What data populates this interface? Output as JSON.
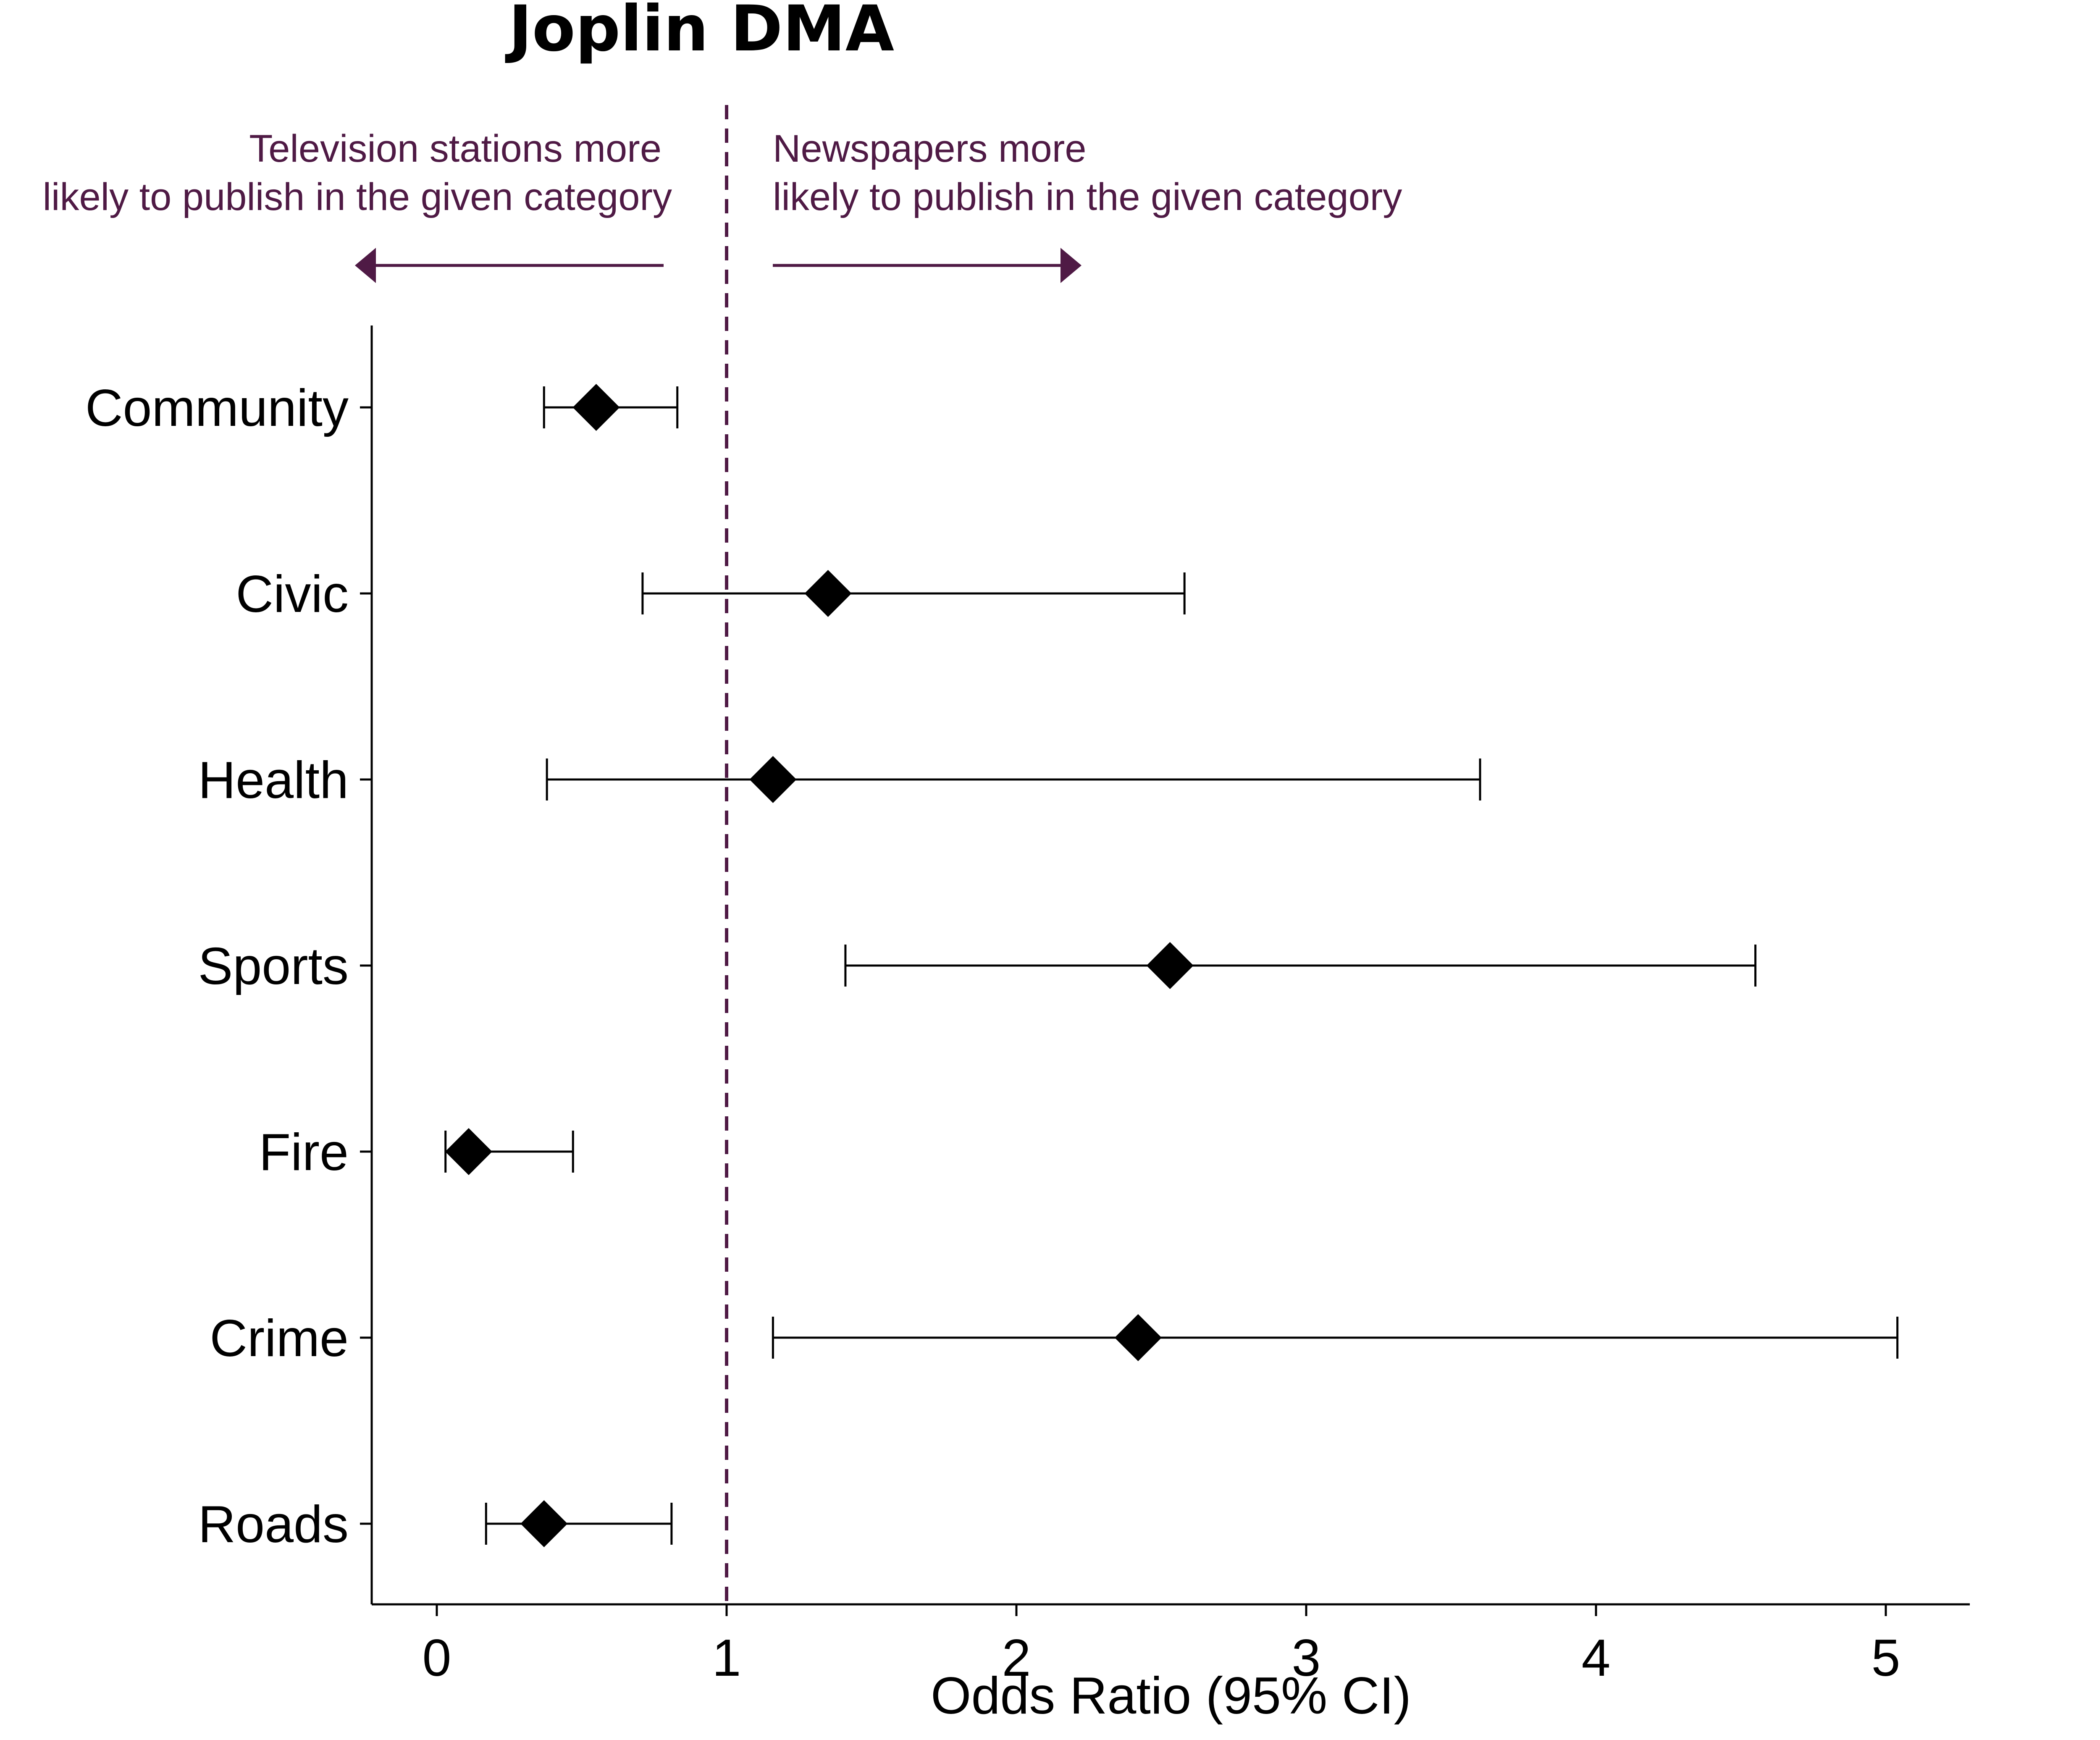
{
  "chart_data": {
    "type": "forest",
    "title": "Joplin DMA",
    "xlabel": "Odds Ratio (95% CI)",
    "xlim": [
      -0.23,
      5.3
    ],
    "xticks": [
      0,
      1,
      2,
      3,
      4,
      5
    ],
    "reference_line": 1,
    "colors": {
      "reference": "#4f1a45",
      "annotation": "#4f1a45",
      "marks": "#000000"
    },
    "annotations": {
      "left": [
        "Television stations more",
        "likely to publish in the given category"
      ],
      "right": [
        "Newspapers more",
        "likely to publish in the given category"
      ]
    },
    "rows": [
      {
        "label": "Community",
        "estimate": 0.55,
        "lower": 0.37,
        "upper": 0.83
      },
      {
        "label": "Civic",
        "estimate": 1.35,
        "lower": 0.71,
        "upper": 2.58
      },
      {
        "label": "Health",
        "estimate": 1.16,
        "lower": 0.38,
        "upper": 3.6
      },
      {
        "label": "Sports",
        "estimate": 2.53,
        "lower": 1.41,
        "upper": 4.55
      },
      {
        "label": "Fire",
        "estimate": 0.11,
        "lower": 0.03,
        "upper": 0.47
      },
      {
        "label": "Crime",
        "estimate": 2.42,
        "lower": 1.16,
        "upper": 5.04
      },
      {
        "label": "Roads",
        "estimate": 0.37,
        "lower": 0.17,
        "upper": 0.81
      }
    ]
  }
}
